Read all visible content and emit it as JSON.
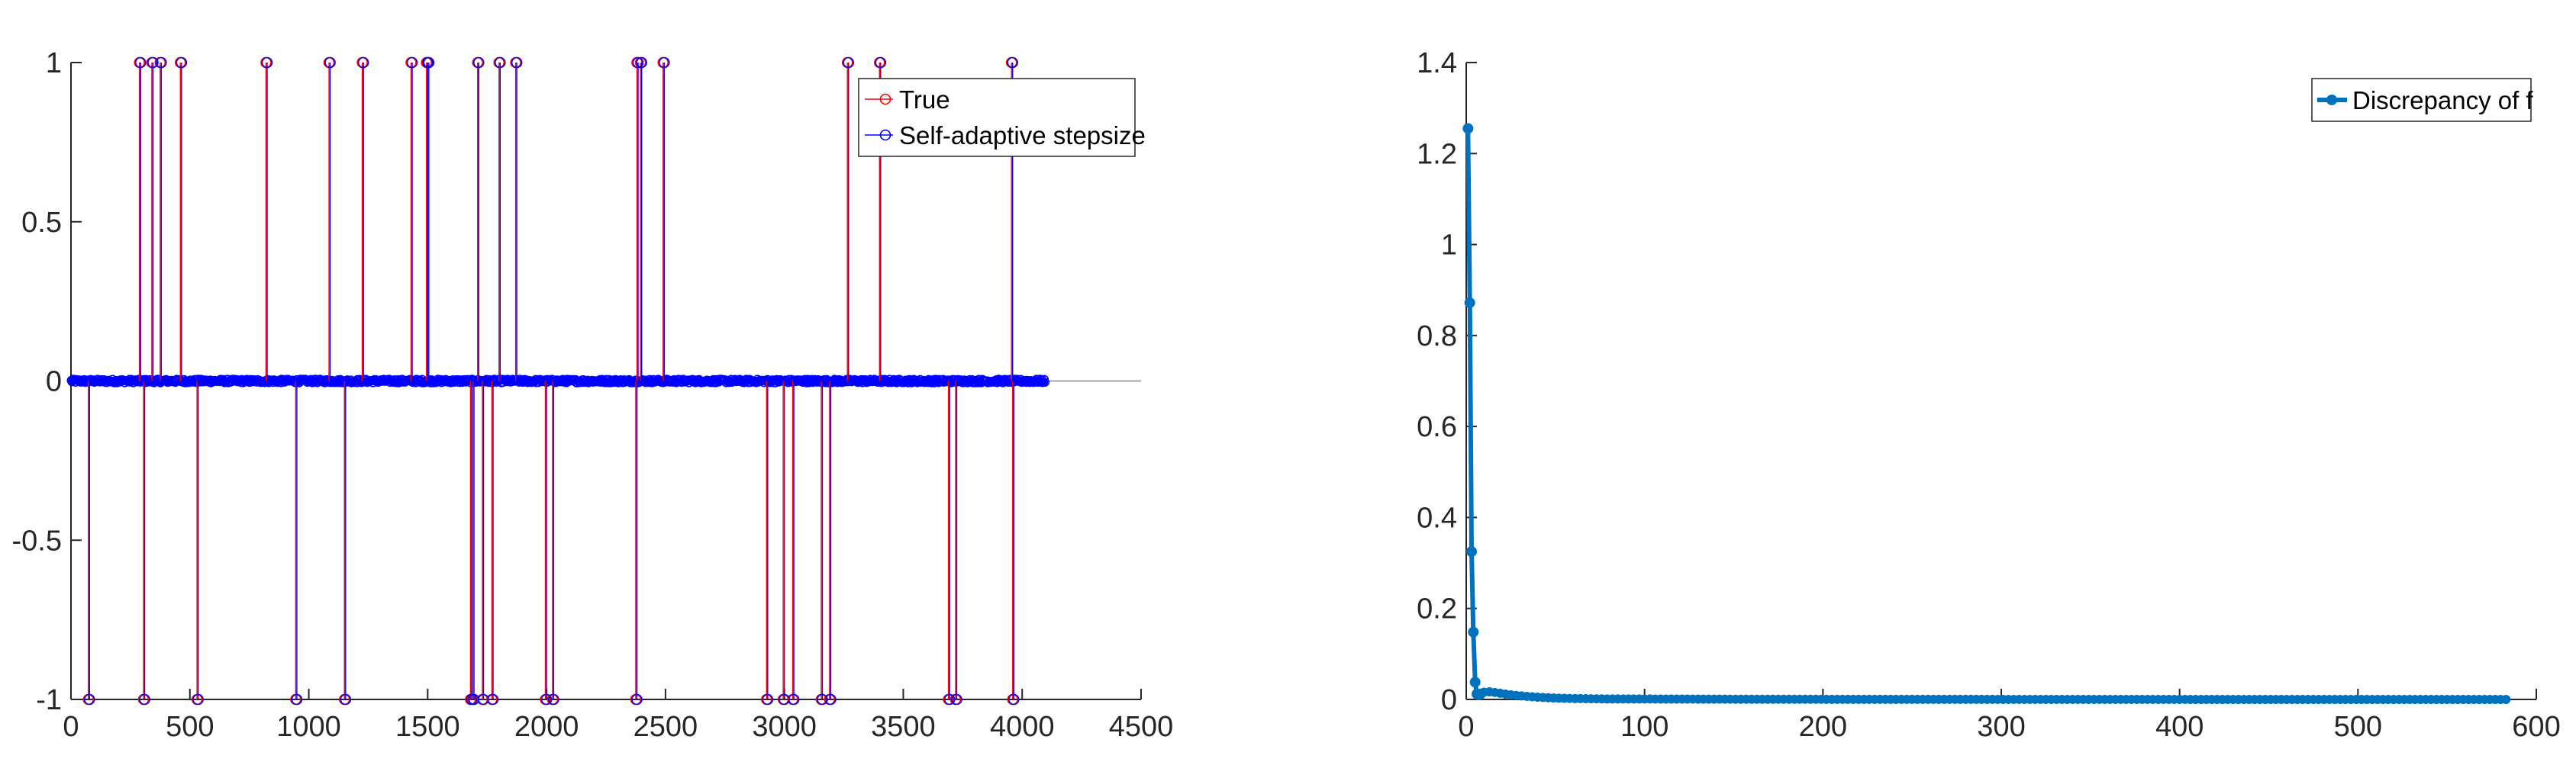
{
  "chart_data": [
    {
      "type": "stem",
      "title": "",
      "xlabel": "",
      "ylabel": "",
      "xlim": [
        0,
        4500
      ],
      "ylim": [
        -1,
        1
      ],
      "xticks": [
        "0",
        "500",
        "1000",
        "1500",
        "2000",
        "2500",
        "3000",
        "3500",
        "4000",
        "4500"
      ],
      "yticks": [
        "-1",
        "-0.5",
        "0",
        "0.5",
        "1"
      ],
      "grid": false,
      "legend_position": "top-right",
      "n_points": 4096,
      "series": [
        {
          "name": "True",
          "color": "#ff0000",
          "marker": "circle",
          "nonzero_x": [
            73,
            288,
            305,
            340,
            375,
            460,
            530,
            820,
            945,
            1085,
            1150,
            1225,
            1430,
            1495,
            1500,
            1680,
            1690,
            1710,
            1730,
            1770,
            1800,
            1870,
            1995,
            2025,
            2375,
            2380,
            2395,
            2490,
            2925,
            2995,
            3035,
            3155,
            3190,
            3265,
            3400,
            3690,
            3720,
            3955,
            3960
          ],
          "nonzero_y": [
            -1,
            1,
            -1,
            1,
            1,
            1,
            -1,
            1,
            -1,
            1,
            -1,
            1,
            1,
            1,
            1,
            -1,
            -1,
            1,
            -1,
            -1,
            1,
            1,
            -1,
            -1,
            -1,
            1,
            1,
            1,
            -1,
            -1,
            -1,
            -1,
            -1,
            1,
            1,
            -1,
            -1,
            1,
            -1
          ]
        },
        {
          "name": "Self-adaptive stepsize",
          "color": "#0000ff",
          "marker": "circle",
          "nonzero_x": [
            73,
            288,
            305,
            340,
            375,
            460,
            530,
            820,
            945,
            1085,
            1150,
            1225,
            1430,
            1495,
            1500,
            1680,
            1690,
            1710,
            1730,
            1770,
            1800,
            1870,
            1995,
            2025,
            2375,
            2380,
            2395,
            2490,
            2925,
            2995,
            3035,
            3155,
            3190,
            3265,
            3400,
            3690,
            3720,
            3955,
            3960
          ],
          "nonzero_y": [
            -1,
            1,
            -1,
            1,
            1,
            1,
            -1,
            1,
            -1,
            1,
            -1,
            1,
            1,
            1,
            1,
            -1,
            -1,
            1,
            -1,
            -1,
            1,
            1,
            -1,
            -1,
            -1,
            1,
            1,
            1,
            -1,
            -1,
            -1,
            -1,
            -1,
            1,
            1,
            -1,
            -1,
            1,
            -1
          ]
        }
      ]
    },
    {
      "type": "line",
      "title": "",
      "xlabel": "",
      "ylabel": "",
      "xlim": [
        0,
        600
      ],
      "ylim": [
        0,
        1.4
      ],
      "xticks": [
        "0",
        "100",
        "200",
        "300",
        "400",
        "500",
        "600"
      ],
      "yticks": [
        "0",
        "0.2",
        "0.4",
        "0.6",
        "0.8",
        "1",
        "1.2",
        "1.4"
      ],
      "grid": false,
      "legend_position": "top-right",
      "series": [
        {
          "name": "Discrepancy of f",
          "color": "#0072bd",
          "marker": "filled-circle",
          "x": [
            1,
            2,
            3,
            4,
            5,
            6,
            7,
            8,
            10,
            12,
            15,
            20,
            25,
            30,
            40,
            50,
            60,
            80,
            100,
            150,
            200,
            250,
            300,
            350,
            400,
            450,
            500,
            550,
            585
          ],
          "y": [
            1.255,
            0.872,
            0.325,
            0.148,
            0.038,
            0.012,
            0.01,
            0.012,
            0.016,
            0.017,
            0.016,
            0.013,
            0.01,
            0.008,
            0.005,
            0.003,
            0.002,
            0.001,
            0.001,
            0.0005,
            0.0003,
            0.0002,
            0.0001,
            0.0001,
            0.0001,
            0.0,
            0.0,
            0.0,
            0.0
          ]
        }
      ]
    }
  ]
}
